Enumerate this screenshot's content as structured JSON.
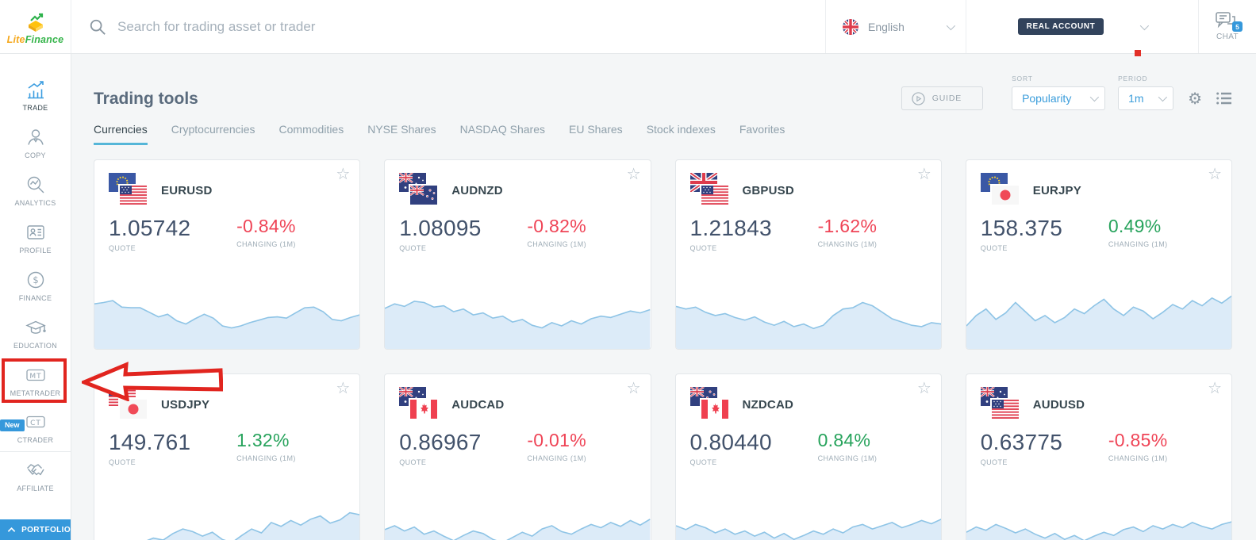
{
  "brand": {
    "name_part1": "Lite",
    "name_part2": "Finance"
  },
  "header": {
    "search_placeholder": "Search for trading asset or trader",
    "language": {
      "label": "English",
      "flag": "uk-round-flag"
    },
    "account_badge": "REAL ACCOUNT",
    "chat": {
      "label": "CHAT",
      "badge_count": "5"
    }
  },
  "sidebar": {
    "items": [
      {
        "id": "trade",
        "label": "TRADE",
        "icon": "chart-growth-icon",
        "active": true
      },
      {
        "id": "copy",
        "label": "COPY",
        "icon": "person-icon"
      },
      {
        "id": "analytics",
        "label": "ANALYTICS",
        "icon": "magnifier-chart-icon"
      },
      {
        "id": "profile",
        "label": "PROFILE",
        "icon": "id-card-icon"
      },
      {
        "id": "finance",
        "label": "FINANCE",
        "icon": "dollar-circle-icon"
      },
      {
        "id": "education",
        "label": "EDUCATION",
        "icon": "graduation-cap-icon"
      },
      {
        "id": "metatrader",
        "label": "METATRADER",
        "icon": "mt-box-icon",
        "icon_text": "MT",
        "highlighted": true
      },
      {
        "id": "ctrader",
        "label": "CTRADER",
        "icon": "ct-box-icon",
        "icon_text": "CT",
        "badge": "New"
      },
      {
        "id": "affiliate",
        "label": "AFFILIATE",
        "icon": "handshake-icon"
      }
    ],
    "portfolio_label": "PORTFOLIO"
  },
  "main": {
    "title": "Trading tools",
    "tabs": [
      {
        "label": "Currencies",
        "active": true
      },
      {
        "label": "Cryptocurrencies"
      },
      {
        "label": "Commodities"
      },
      {
        "label": "NYSE Shares"
      },
      {
        "label": "NASDAQ Shares"
      },
      {
        "label": "EU Shares"
      },
      {
        "label": "Stock indexes"
      },
      {
        "label": "Favorites"
      }
    ],
    "toolbar": {
      "guide_label": "GUIDE",
      "sort_label": "SORT",
      "sort_value": "Popularity",
      "period_label": "PERIOD",
      "period_value": "1m"
    },
    "card_labels": {
      "quote": "QUOTE",
      "changing": "CHANGING (1M)"
    },
    "cards": [
      {
        "symbol": "EURUSD",
        "flags": [
          "eu",
          "us"
        ],
        "quote": "1.05742",
        "change": "-0.84%",
        "direction": "down",
        "spark": [
          62,
          64,
          67,
          57,
          56,
          56,
          49,
          42,
          46,
          36,
          31,
          39,
          46,
          40,
          28,
          25,
          28,
          33,
          37,
          41,
          42,
          40,
          48,
          56,
          57,
          50,
          38,
          36,
          41,
          45
        ]
      },
      {
        "symbol": "AUDNZD",
        "flags": [
          "au",
          "nz"
        ],
        "quote": "1.08095",
        "change": "-0.82%",
        "direction": "down",
        "spark": [
          55,
          62,
          58,
          66,
          64,
          57,
          59,
          50,
          54,
          45,
          48,
          40,
          43,
          34,
          38,
          29,
          25,
          33,
          28,
          36,
          31,
          39,
          43,
          41,
          46,
          51,
          48,
          53
        ]
      },
      {
        "symbol": "GBPUSD",
        "flags": [
          "gb",
          "us"
        ],
        "quote": "1.21843",
        "change": "-1.62%",
        "direction": "down",
        "spark": [
          58,
          54,
          57,
          49,
          44,
          47,
          41,
          37,
          42,
          34,
          29,
          35,
          27,
          31,
          24,
          29,
          44,
          54,
          56,
          64,
          59,
          49,
          39,
          34,
          29,
          27,
          33,
          31
        ]
      },
      {
        "symbol": "EURJPY",
        "flags": [
          "eu",
          "jp"
        ],
        "quote": "158.375",
        "change": "0.49%",
        "direction": "up",
        "spark": [
          28,
          44,
          54,
          38,
          48,
          64,
          50,
          36,
          44,
          33,
          41,
          54,
          47,
          59,
          69,
          54,
          44,
          57,
          51,
          39,
          49,
          61,
          54,
          67,
          59,
          71,
          63,
          74
        ]
      },
      {
        "symbol": "USDJPY",
        "flags": [
          "us",
          "jp"
        ],
        "quote": "149.761",
        "change": "1.32%",
        "direction": "up",
        "spark": [
          10,
          16,
          12,
          22,
          17,
          25,
          31,
          28,
          38,
          45,
          41,
          34,
          40,
          29,
          24,
          35,
          45,
          39,
          55,
          49,
          58,
          51,
          60,
          65,
          54,
          59,
          70,
          67
        ]
      },
      {
        "symbol": "AUDCAD",
        "flags": [
          "au",
          "ca"
        ],
        "quote": "0.86967",
        "change": "-0.01%",
        "direction": "down",
        "spark": [
          44,
          50,
          42,
          48,
          37,
          42,
          34,
          27,
          35,
          42,
          38,
          29,
          24,
          32,
          40,
          34,
          45,
          50,
          41,
          37,
          45,
          52,
          47,
          55,
          49,
          58,
          51,
          60
        ]
      },
      {
        "symbol": "NZDCAD",
        "flags": [
          "nz",
          "ca"
        ],
        "quote": "0.80440",
        "change": "0.84%",
        "direction": "up",
        "spark": [
          50,
          44,
          52,
          47,
          39,
          45,
          37,
          42,
          34,
          40,
          31,
          38,
          29,
          35,
          42,
          37,
          45,
          39,
          48,
          52,
          45,
          50,
          55,
          47,
          52,
          58,
          53,
          60
        ]
      },
      {
        "symbol": "AUDUSD",
        "flags": [
          "au",
          "us"
        ],
        "quote": "0.63775",
        "change": "-0.85%",
        "direction": "down",
        "spark": [
          40,
          48,
          43,
          52,
          46,
          39,
          45,
          37,
          31,
          38,
          29,
          35,
          27,
          34,
          40,
          35,
          44,
          48,
          41,
          50,
          45,
          52,
          47,
          55,
          49,
          45,
          52,
          56
        ]
      }
    ]
  },
  "annotations": {
    "highlight_box_target": "METATRADER",
    "arrow_direction": "left"
  },
  "colors": {
    "accent_blue": "#3598db",
    "positive_green": "#27a35c",
    "negative_red": "#ef4456",
    "annotation_red": "#e1251f",
    "account_badge_navy": "#32435c",
    "chart_fill": "#dcebf8",
    "chart_line": "#8ec4e6"
  }
}
